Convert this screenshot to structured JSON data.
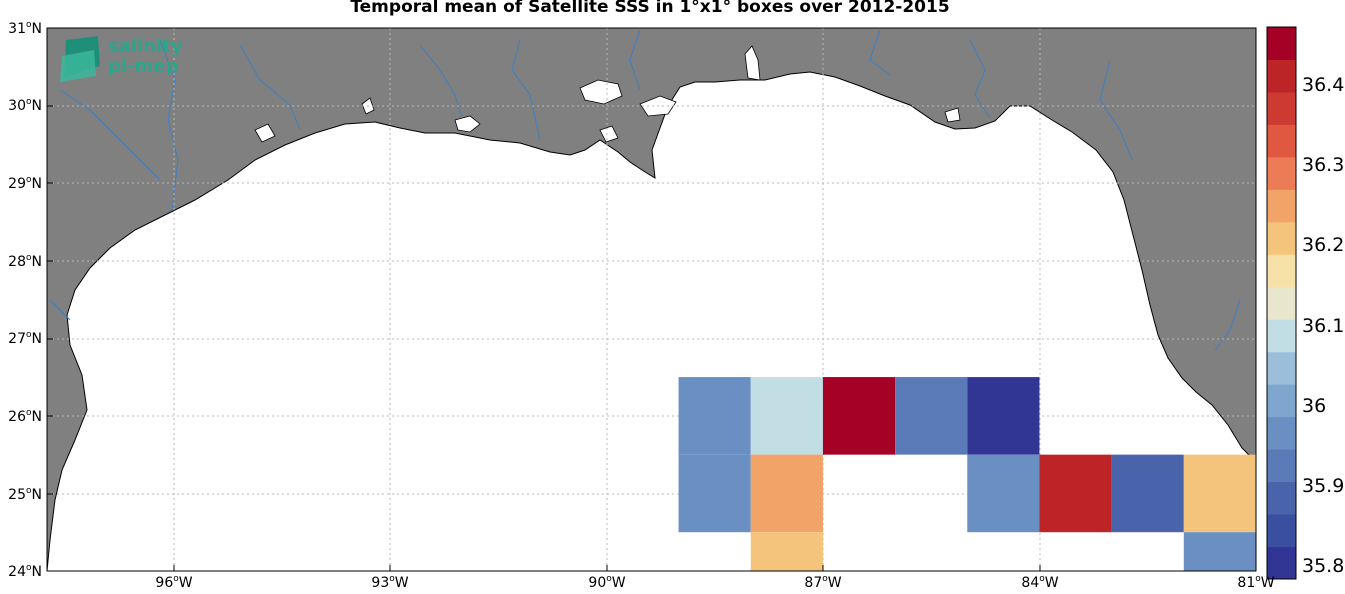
{
  "title": "Temporal mean of Satellite SSS in 1°x1° boxes over 2012-2015",
  "logo": {
    "line1": "salinity",
    "line2": "pi-mep"
  },
  "y_ticks": [
    {
      "value": 24,
      "num": "24",
      "sup": "o",
      "hemi": "N"
    },
    {
      "value": 25,
      "num": "25",
      "sup": "o",
      "hemi": "N"
    },
    {
      "value": 26,
      "num": "26",
      "sup": "o",
      "hemi": "N"
    },
    {
      "value": 27,
      "num": "27",
      "sup": "o",
      "hemi": "N"
    },
    {
      "value": 28,
      "num": "28",
      "sup": "o",
      "hemi": "N"
    },
    {
      "value": 29,
      "num": "29",
      "sup": "o",
      "hemi": "N"
    },
    {
      "value": 30,
      "num": "30",
      "sup": "o",
      "hemi": "N"
    },
    {
      "value": 31,
      "num": "31",
      "sup": "o",
      "hemi": "N"
    }
  ],
  "x_ticks": [
    {
      "value": -96,
      "num": "96",
      "sup": "o",
      "hemi": "W"
    },
    {
      "value": -93,
      "num": "93",
      "sup": "o",
      "hemi": "W"
    },
    {
      "value": -90,
      "num": "90",
      "sup": "o",
      "hemi": "W"
    },
    {
      "value": -87,
      "num": "87",
      "sup": "o",
      "hemi": "W"
    },
    {
      "value": -84,
      "num": "84",
      "sup": "o",
      "hemi": "W"
    },
    {
      "value": -81,
      "num": "81",
      "sup": "o",
      "hemi": "W"
    }
  ],
  "colorbar": {
    "labels": [
      "35.8",
      "35.9",
      "36",
      "36.1",
      "36.2",
      "36.3",
      "36.4"
    ],
    "colors": [
      "#313695",
      "#3a4fa0",
      "#4a64ac",
      "#5a7ab8",
      "#6a8fc3",
      "#7ea6cf",
      "#9bbfdb",
      "#c3dde5",
      "#e8e6cc",
      "#f6e1a8",
      "#f5c47c",
      "#f2a468",
      "#ec7c55",
      "#e0583f",
      "#cc3a31",
      "#bd2427",
      "#a50026"
    ]
  },
  "colors": {
    "land": "#808080",
    "ocean": "#ffffff",
    "rivers": "#3f7fbf",
    "grid": "#b8b8b8"
  },
  "chart_data": {
    "type": "heatmap",
    "title": "Temporal mean of Satellite SSS in 1°x1° boxes over 2012-2015",
    "xlim": [
      -97.75,
      -81
    ],
    "ylim": [
      24,
      31
    ],
    "grid": true,
    "colorbar_range": [
      35.8,
      36.47
    ],
    "cells": [
      {
        "lon": -88.5,
        "lat": 26.0,
        "value": 35.99
      },
      {
        "lon": -87.5,
        "lat": 26.0,
        "value": 36.11
      },
      {
        "lon": -86.5,
        "lat": 26.0,
        "value": 36.46
      },
      {
        "lon": -85.5,
        "lat": 26.0,
        "value": 35.93
      },
      {
        "lon": -84.5,
        "lat": 26.0,
        "value": 35.82
      },
      {
        "lon": -88.5,
        "lat": 25.0,
        "value": 35.96
      },
      {
        "lon": -87.5,
        "lat": 25.0,
        "value": 36.27
      },
      {
        "lon": -84.5,
        "lat": 25.0,
        "value": 35.96
      },
      {
        "lon": -83.5,
        "lat": 25.0,
        "value": 36.41
      },
      {
        "lon": -82.5,
        "lat": 25.0,
        "value": 35.89
      },
      {
        "lon": -81.5,
        "lat": 25.0,
        "value": 36.2
      },
      {
        "lon": -87.5,
        "lat": 24.0,
        "value": 36.22
      },
      {
        "lon": -81.5,
        "lat": 24.0,
        "value": 35.99
      }
    ]
  }
}
